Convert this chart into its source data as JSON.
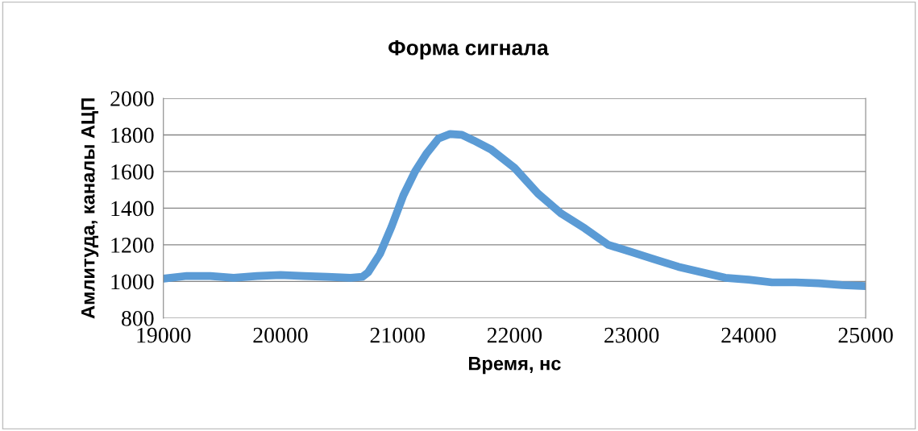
{
  "chart_data": {
    "type": "line",
    "title": "Форма сигнала",
    "xlabel": "Время, нс",
    "ylabel": "Амлитуда, каналы АЦП",
    "x": [
      19000,
      19200,
      19400,
      19600,
      19800,
      20000,
      20200,
      20400,
      20600,
      20700,
      20750,
      20850,
      20950,
      21050,
      21150,
      21250,
      21350,
      21450,
      21550,
      21650,
      21800,
      22000,
      22200,
      22400,
      22600,
      22800,
      23000,
      23200,
      23400,
      23600,
      23800,
      24000,
      24200,
      24400,
      24600,
      24800,
      25000
    ],
    "series": [
      {
        "color": "#5b9bd5",
        "values": [
          1015,
          1030,
          1030,
          1020,
          1030,
          1035,
          1030,
          1025,
          1020,
          1025,
          1050,
          1150,
          1300,
          1470,
          1600,
          1700,
          1780,
          1805,
          1800,
          1770,
          1720,
          1620,
          1480,
          1370,
          1290,
          1200,
          1160,
          1120,
          1080,
          1050,
          1020,
          1010,
          995,
          995,
          990,
          980,
          975
        ]
      }
    ],
    "xlim": [
      19000,
      25000
    ],
    "xticks": [
      19000,
      20000,
      21000,
      22000,
      23000,
      24000,
      25000
    ],
    "ylim": [
      800,
      2000
    ],
    "yticks": [
      800,
      1000,
      1200,
      1400,
      1600,
      1800,
      2000
    ],
    "grid": "y",
    "marker": "none",
    "line_style": "solid"
  }
}
